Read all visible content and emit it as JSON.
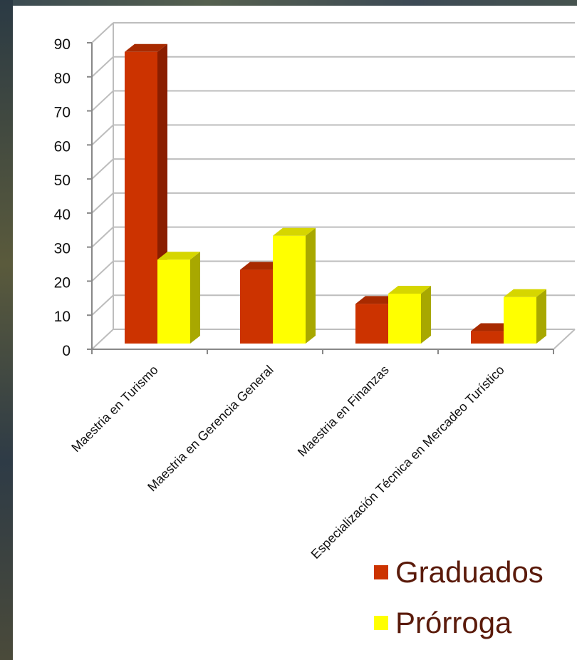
{
  "chart_data": {
    "type": "bar",
    "categories": [
      "Maestria en Turismo",
      "Maestria en Gerencia General",
      "Maestria en Finanzas",
      "Especialización Técnica en Mercadeo Turístico"
    ],
    "series": [
      {
        "name": "Graduados",
        "values": [
          89,
          25,
          15,
          7
        ],
        "color": "#cc3300",
        "side": "#8a1e00",
        "top": "#a82a00"
      },
      {
        "name": "Prórroga",
        "values": [
          28,
          35,
          18,
          17
        ],
        "color": "#ffff00",
        "side": "#a8a800",
        "top": "#d6d600"
      }
    ],
    "ylim": [
      0,
      90
    ],
    "yticks": [
      "0",
      "10",
      "20",
      "30",
      "40",
      "50",
      "60",
      "70",
      "80",
      "90"
    ],
    "grid": true,
    "legend_position": "bottom-right"
  }
}
